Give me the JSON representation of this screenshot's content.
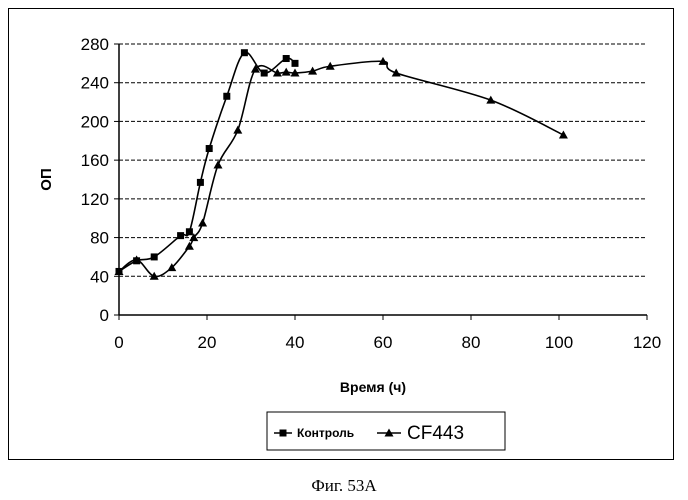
{
  "chart_data": {
    "type": "line",
    "xlabel": "Время (ч)",
    "ylabel": "ОП",
    "xlim": [
      0,
      120
    ],
    "ylim": [
      0,
      280
    ],
    "x_ticks": [
      "0",
      "20",
      "40",
      "60",
      "80",
      "100",
      "120"
    ],
    "y_ticks": [
      "0",
      "40",
      "80",
      "120",
      "160",
      "200",
      "240",
      "280"
    ],
    "grid": "horizontal dashed",
    "legend_position": "bottom",
    "series": [
      {
        "name": "Контроль",
        "marker": "square",
        "x": [
          0,
          4,
          8,
          14,
          16,
          18.5,
          20.5,
          24.5,
          28.5,
          33,
          38,
          40
        ],
        "y": [
          45,
          56,
          60,
          82,
          86,
          137,
          172,
          226,
          271,
          250,
          265,
          260
        ]
      },
      {
        "name": "CF443",
        "marker": "triangle",
        "x": [
          0,
          4,
          8,
          12,
          16,
          17,
          19,
          22.5,
          27,
          31,
          36,
          38,
          40,
          44,
          48,
          60,
          63,
          84.5,
          101
        ],
        "y": [
          45,
          57,
          40,
          49,
          71,
          80,
          95,
          155,
          191,
          254,
          250,
          251,
          250,
          252,
          257,
          262,
          250,
          222,
          186
        ]
      }
    ]
  },
  "caption": "Фиг. 53А"
}
